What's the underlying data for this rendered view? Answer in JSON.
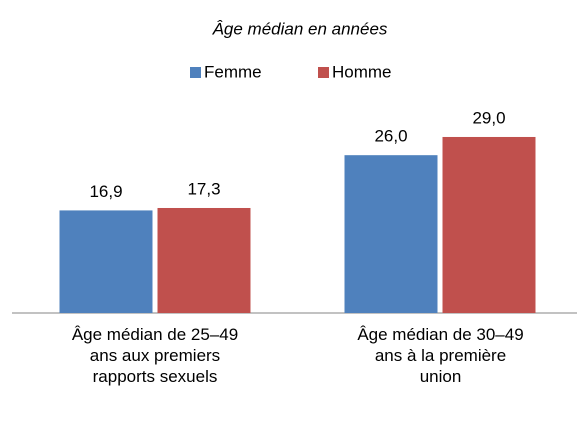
{
  "chart_data": {
    "type": "bar",
    "title": "Âge médian en années",
    "categories": [
      "Âge médian de 25–49 ans aux premiers rapports sexuels",
      "Âge médian de 30–49 ans à la première union"
    ],
    "series": [
      {
        "name": "Femme",
        "color": "#4f81bd",
        "values": [
          16.9,
          26.0
        ],
        "value_labels": [
          "16,9",
          "26,0"
        ]
      },
      {
        "name": "Homme",
        "color": "#c0504d",
        "values": [
          17.3,
          29.0
        ],
        "value_labels": [
          "17,3",
          "29,0"
        ]
      }
    ],
    "legend": "top"
  }
}
